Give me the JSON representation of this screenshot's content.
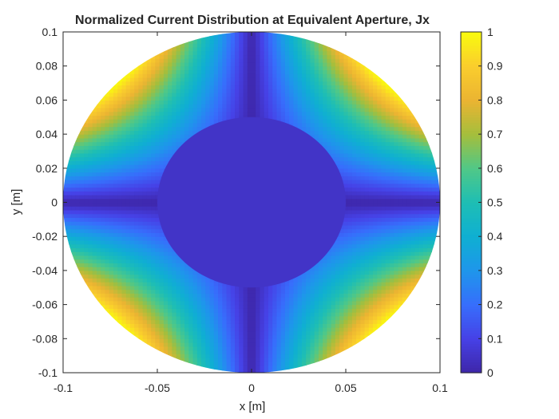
{
  "chart_data": {
    "type": "heatmap",
    "title": "Normalized Current Distribution at Equivalent Aperture, Jx",
    "xlabel": "x [m]",
    "ylabel": "y [m]",
    "xlim": [
      -0.1,
      0.1
    ],
    "ylim": [
      -0.1,
      0.1
    ],
    "xticks": [
      -0.1,
      -0.05,
      0,
      0.05,
      0.1
    ],
    "xtick_labels": [
      "-0.1",
      "-0.05",
      "0",
      "0.05",
      "0.1"
    ],
    "yticks": [
      -0.1,
      -0.08,
      -0.06,
      -0.04,
      -0.02,
      0,
      0.02,
      0.04,
      0.06,
      0.08,
      0.1
    ],
    "ytick_labels": [
      "-0.1",
      "-0.08",
      "-0.06",
      "-0.04",
      "-0.02",
      "0",
      "0.02",
      "0.04",
      "0.06",
      "0.08",
      "0.1"
    ],
    "colorbar": {
      "colormap": "parula",
      "range": [
        0,
        1
      ],
      "ticks": [
        0,
        0.1,
        0.2,
        0.3,
        0.4,
        0.5,
        0.6,
        0.7,
        0.8,
        0.9,
        1
      ],
      "tick_labels": [
        "0",
        "0.1",
        "0.2",
        "0.3",
        "0.4",
        "0.5",
        "0.6",
        "0.7",
        "0.8",
        "0.9",
        "1"
      ]
    },
    "aperture": {
      "outer_radius": 0.1,
      "inner_radius": 0.05,
      "inner_value": 0.05
    },
    "field_model": "normalized value ≈ |sin(2φ)|·(r/0.1)^2 within the ring, max 1 at the ±45° corners",
    "grid": false
  }
}
